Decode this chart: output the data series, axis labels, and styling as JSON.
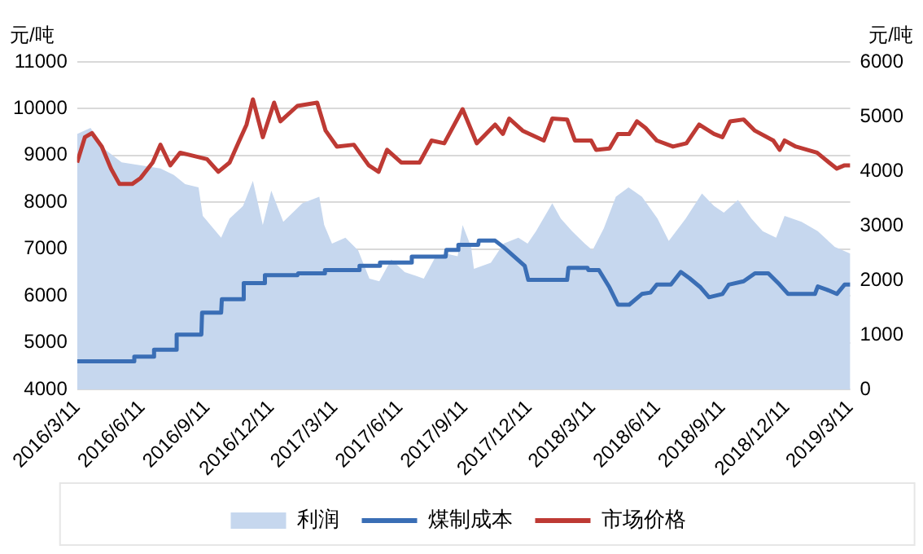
{
  "chart_data": {
    "type": "line",
    "ylabel": "元/吨",
    "y2label": "元/吨",
    "xlim": [
      "2016-03-11",
      "2019-03-11"
    ],
    "xticks": [
      {
        "value": "2016-03-11",
        "label": "2016/3/11"
      },
      {
        "value": "2016-06-11",
        "label": "2016/6/11"
      },
      {
        "value": "2016-09-11",
        "label": "2016/9/11"
      },
      {
        "value": "2016-12-11",
        "label": "2016/12/11"
      },
      {
        "value": "2017-03-11",
        "label": "2017/3/11"
      },
      {
        "value": "2017-06-11",
        "label": "2017/6/11"
      },
      {
        "value": "2017-09-11",
        "label": "2017/9/11"
      },
      {
        "value": "2017-12-11",
        "label": "2017/12/11"
      },
      {
        "value": "2018-03-11",
        "label": "2018/3/11"
      },
      {
        "value": "2018-06-11",
        "label": "2018/6/11"
      },
      {
        "value": "2018-09-11",
        "label": "2018/9/11"
      },
      {
        "value": "2018-12-11",
        "label": "2018/12/11"
      },
      {
        "value": "2019-03-11",
        "label": "2019/3/11"
      }
    ],
    "ylim": [
      4000,
      11000
    ],
    "yticks": [
      4000,
      5000,
      6000,
      7000,
      8000,
      9000,
      10000,
      11000
    ],
    "y2lim": [
      0,
      6000
    ],
    "y2ticks": [
      0,
      1000,
      2000,
      3000,
      4000,
      5000,
      6000
    ],
    "grid": "y",
    "legend": "bottom",
    "marker": "none",
    "line_style": "solid",
    "series": [
      {
        "name": "利润",
        "type": "area",
        "axis": "y2",
        "color": "#c6d7ee",
        "x": [
          "2016-03-11",
          "2016-03-30",
          "2016-04-20",
          "2016-05-13",
          "2016-07-07",
          "2016-07-26",
          "2016-08-11",
          "2016-08-30",
          "2016-09-05",
          "2016-10-01",
          "2016-10-13",
          "2016-11-01",
          "2016-11-15",
          "2016-11-29",
          "2016-12-11",
          "2016-12-28",
          "2017-01-24",
          "2017-02-17",
          "2017-02-24",
          "2017-03-07",
          "2017-03-26",
          "2017-04-13",
          "2017-04-29",
          "2017-05-13",
          "2017-05-30",
          "2017-06-18",
          "2017-07-15",
          "2017-08-01",
          "2017-08-15",
          "2017-09-01",
          "2017-09-08",
          "2017-09-20",
          "2017-09-24",
          "2017-10-18",
          "2017-11-05",
          "2017-11-26",
          "2017-12-09",
          "2017-12-21",
          "2018-01-13",
          "2018-01-25",
          "2018-02-10",
          "2018-02-28",
          "2018-03-11",
          "2018-03-27",
          "2018-04-13",
          "2018-05-01",
          "2018-05-20",
          "2018-06-11",
          "2018-06-27",
          "2018-07-21",
          "2018-08-13",
          "2018-08-30",
          "2018-09-13",
          "2018-10-03",
          "2018-10-22",
          "2018-11-07",
          "2018-11-26",
          "2018-12-08",
          "2019-01-01",
          "2019-01-24",
          "2019-02-17",
          "2019-03-11"
        ],
        "values": [
          4680,
          4790,
          4390,
          4160,
          4050,
          3930,
          3760,
          3700,
          3180,
          2780,
          3130,
          3360,
          3820,
          3010,
          3640,
          3070,
          3410,
          3530,
          3010,
          2670,
          2780,
          2550,
          2030,
          1980,
          2380,
          2150,
          2030,
          2440,
          2490,
          2440,
          3010,
          2610,
          2210,
          2320,
          2670,
          2780,
          2670,
          2900,
          3410,
          3130,
          2900,
          2670,
          2550,
          2950,
          3530,
          3700,
          3530,
          3130,
          2720,
          3130,
          3590,
          3360,
          3240,
          3470,
          3130,
          2900,
          2780,
          3180,
          3070,
          2900,
          2610,
          2490
        ]
      },
      {
        "name": "煤制成本",
        "color": "#3a6eb5",
        "x": [
          "2016-03-11",
          "2016-05-30",
          "2016-05-31",
          "2016-06-27",
          "2016-06-28",
          "2016-07-29",
          "2016-07-30",
          "2016-09-03",
          "2016-09-04",
          "2016-10-01",
          "2016-10-02",
          "2016-11-01",
          "2016-11-02",
          "2016-12-01",
          "2016-12-02",
          "2017-01-17",
          "2017-01-18",
          "2017-02-24",
          "2017-02-25",
          "2017-04-14",
          "2017-04-15",
          "2017-05-13",
          "2017-05-14",
          "2017-06-27",
          "2017-06-28",
          "2017-08-15",
          "2017-08-16",
          "2017-09-01",
          "2017-09-02",
          "2017-09-30",
          "2017-10-01",
          "2017-10-24",
          "2017-11-05",
          "2017-11-20",
          "2017-12-05",
          "2017-12-10",
          "2018-02-03",
          "2018-02-05",
          "2018-03-04",
          "2018-03-05",
          "2018-03-20",
          "2018-04-04",
          "2018-04-16",
          "2018-05-02",
          "2018-05-20",
          "2018-06-01",
          "2018-06-10",
          "2018-06-30",
          "2018-07-14",
          "2018-07-26",
          "2018-08-11",
          "2018-08-23",
          "2018-09-11",
          "2018-09-20",
          "2018-10-11",
          "2018-10-27",
          "2018-11-15",
          "2018-12-01",
          "2018-12-13",
          "2019-01-20",
          "2019-01-24",
          "2019-02-06",
          "2019-02-20",
          "2019-03-03",
          "2019-03-11"
        ],
        "values": [
          4600,
          4600,
          4700,
          4700,
          4850,
          4850,
          5170,
          5170,
          5640,
          5640,
          5930,
          5930,
          6270,
          6270,
          6440,
          6440,
          6480,
          6480,
          6550,
          6550,
          6640,
          6640,
          6710,
          6710,
          6840,
          6840,
          6980,
          6980,
          7090,
          7090,
          7180,
          7180,
          7040,
          6840,
          6640,
          6340,
          6340,
          6600,
          6600,
          6550,
          6550,
          6180,
          5810,
          5810,
          6040,
          6070,
          6240,
          6240,
          6510,
          6380,
          6180,
          5970,
          6040,
          6240,
          6310,
          6480,
          6480,
          6240,
          6040,
          6040,
          6200,
          6130,
          6040,
          6240,
          6240
        ]
      },
      {
        "name": "市场价格",
        "color": "#be3a34",
        "x": [
          "2016-03-11",
          "2016-03-22",
          "2016-04-01",
          "2016-04-15",
          "2016-04-28",
          "2016-05-10",
          "2016-05-28",
          "2016-06-09",
          "2016-06-26",
          "2016-07-07",
          "2016-07-21",
          "2016-08-04",
          "2016-08-23",
          "2016-09-11",
          "2016-09-27",
          "2016-10-13",
          "2016-10-25",
          "2016-11-06",
          "2016-11-15",
          "2016-11-29",
          "2016-12-15",
          "2016-12-24",
          "2017-01-17",
          "2017-02-14",
          "2017-02-26",
          "2017-03-14",
          "2017-04-07",
          "2017-04-28",
          "2017-05-12",
          "2017-05-24",
          "2017-06-13",
          "2017-07-09",
          "2017-07-26",
          "2017-08-13",
          "2017-09-08",
          "2017-09-28",
          "2017-10-24",
          "2017-11-04",
          "2017-11-13",
          "2017-12-02",
          "2018-01-01",
          "2018-01-13",
          "2018-02-03",
          "2018-02-14",
          "2018-03-09",
          "2018-03-16",
          "2018-04-04",
          "2018-04-16",
          "2018-05-02",
          "2018-05-13",
          "2018-05-25",
          "2018-06-10",
          "2018-07-03",
          "2018-07-22",
          "2018-08-09",
          "2018-08-30",
          "2018-09-11",
          "2018-09-22",
          "2018-10-11",
          "2018-10-27",
          "2018-11-22",
          "2018-12-01",
          "2018-12-08",
          "2018-12-24",
          "2019-01-23",
          "2019-02-09",
          "2019-02-20",
          "2019-03-03",
          "2019-03-11"
        ],
        "values": [
          8850,
          9390,
          9480,
          9190,
          8720,
          8390,
          8390,
          8520,
          8850,
          9230,
          8790,
          9060,
          8990,
          8920,
          8650,
          8850,
          9260,
          9660,
          10200,
          9390,
          10130,
          9730,
          10060,
          10130,
          9530,
          9190,
          9230,
          8790,
          8650,
          9120,
          8850,
          8850,
          9320,
          9260,
          9990,
          9260,
          9660,
          9460,
          9790,
          9530,
          9320,
          9790,
          9770,
          9320,
          9320,
          9120,
          9150,
          9460,
          9460,
          9730,
          9590,
          9320,
          9190,
          9260,
          9660,
          9460,
          9390,
          9730,
          9770,
          9530,
          9320,
          9120,
          9320,
          9190,
          9060,
          8850,
          8720,
          8790,
          8790
        ]
      }
    ]
  }
}
